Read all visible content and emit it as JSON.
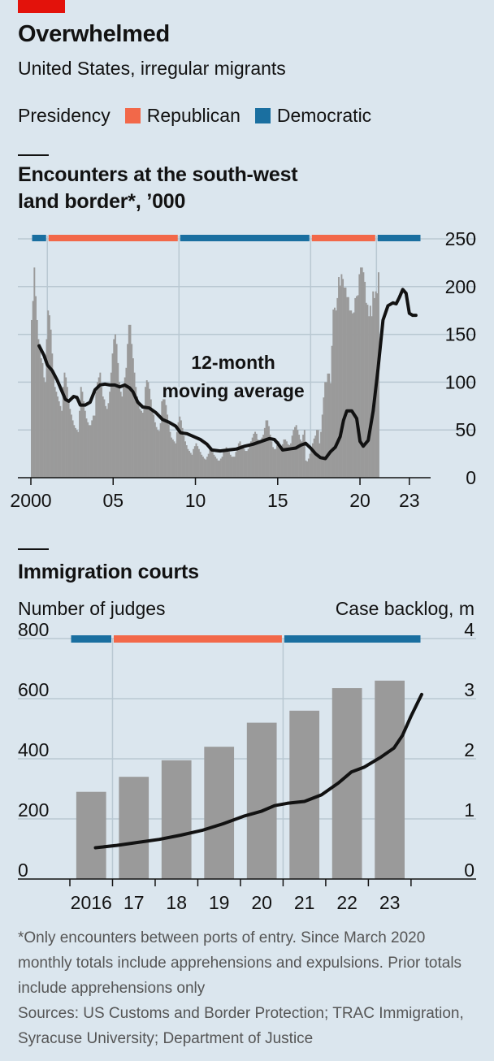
{
  "header": {
    "title": "Overwhelmed",
    "subtitle": "United States, irregular migrants"
  },
  "legend": {
    "label": "Presidency",
    "items": [
      {
        "label": "Republican",
        "color": "#f26849"
      },
      {
        "label": "Democratic",
        "color": "#1a6fa0"
      }
    ]
  },
  "colors": {
    "bar": "#9a9a9a",
    "line": "#121212",
    "background": "#dbe6ee",
    "grid": "#b9c8d2",
    "accent": "#e3120b"
  },
  "chart_data": [
    {
      "type": "bar",
      "title": "Encounters at the south-west land border*, ’000",
      "xlim": [
        2000,
        2023.75
      ],
      "ylim": [
        0,
        250
      ],
      "y_ticks": [
        0,
        50,
        100,
        150,
        200,
        250
      ],
      "x_tick_values": [
        2000,
        2005,
        2010,
        2015,
        2020,
        2023
      ],
      "x_tick_labels": [
        "2000",
        "05",
        "10",
        "15",
        "20",
        "23"
      ],
      "y_axis_side": "right",
      "grid": true,
      "presidency_bands": [
        {
          "party": "Democratic",
          "start": 2000,
          "end": 2001
        },
        {
          "party": "Republican",
          "start": 2001,
          "end": 2009
        },
        {
          "party": "Democratic",
          "start": 2009,
          "end": 2017
        },
        {
          "party": "Republican",
          "start": 2017,
          "end": 2021
        },
        {
          "party": "Democratic",
          "start": 2021,
          "end": 2023.75
        }
      ],
      "annotation": {
        "lines": [
          "12-month",
          "moving average"
        ],
        "x": 2012.3,
        "y": 114
      },
      "series": [
        {
          "name": "Monthly encounters",
          "type": "bar",
          "x_start": 2000.0,
          "x_step": 0.0833333,
          "values": [
            165,
            185,
            220,
            190,
            165,
            145,
            140,
            125,
            120,
            105,
            100,
            145,
            175,
            170,
            155,
            130,
            110,
            95,
            90,
            85,
            80,
            75,
            70,
            95,
            110,
            105,
            95,
            80,
            72,
            66,
            60,
            55,
            52,
            50,
            48,
            70,
            95,
            90,
            80,
            70,
            62,
            58,
            55,
            55,
            60,
            65,
            65,
            90,
            100,
            105,
            110,
            95,
            85,
            82,
            75,
            72,
            78,
            90,
            110,
            130,
            145,
            150,
            140,
            120,
            100,
            90,
            85,
            95,
            105,
            115,
            140,
            160,
            160,
            140,
            125,
            110,
            95,
            85,
            80,
            72,
            70,
            68,
            72,
            95,
            102,
            100,
            93,
            82,
            72,
            66,
            58,
            53,
            50,
            49,
            57,
            80,
            90,
            85,
            76,
            66,
            56,
            48,
            42,
            40,
            38,
            36,
            48,
            58,
            64,
            60,
            52,
            44,
            38,
            34,
            30,
            28,
            26,
            24,
            30,
            33,
            36,
            33,
            30,
            27,
            24,
            22,
            20,
            19,
            22,
            25,
            30,
            30,
            27,
            24,
            22,
            20,
            18,
            18,
            20,
            22,
            28,
            30,
            32,
            30,
            27,
            24,
            22,
            22,
            22,
            27,
            32,
            36,
            38,
            34,
            32,
            30,
            28,
            28,
            30,
            35,
            38,
            42,
            46,
            48,
            46,
            40,
            38,
            38,
            42,
            45,
            52,
            60,
            60,
            54,
            45,
            38,
            32,
            30,
            30,
            34,
            38,
            32,
            30,
            35,
            40,
            40,
            38,
            35,
            34,
            36,
            44,
            50,
            53,
            55,
            50,
            45,
            40,
            38,
            45,
            50,
            18,
            17,
            20,
            25,
            31,
            36,
            41,
            44,
            50,
            50,
            36,
            48,
            66,
            84,
            100,
            100,
            109,
            109,
            99,
            138,
            176,
            178,
            175,
            188,
            210,
            201,
            213,
            208,
            199,
            199,
            189,
            189,
            175,
            175,
            172,
            173,
            188,
            190,
            191,
            213,
            220,
            220,
            215,
            205,
            183,
            181,
            169,
            180,
            169,
            195,
            188,
            195,
            193,
            215
          ]
        },
        {
          "name": "12-month moving average",
          "type": "line",
          "points": [
            [
              2000.5,
              138
            ],
            [
              2000.8,
              128
            ],
            [
              2001.0,
              118
            ],
            [
              2001.3,
              112
            ],
            [
              2001.6,
              102
            ],
            [
              2001.9,
              90
            ],
            [
              2002.1,
              82
            ],
            [
              2002.3,
              80
            ],
            [
              2002.6,
              85
            ],
            [
              2002.8,
              84
            ],
            [
              2003.0,
              76
            ],
            [
              2003.3,
              76
            ],
            [
              2003.6,
              79
            ],
            [
              2003.9,
              92
            ],
            [
              2004.2,
              97
            ],
            [
              2004.5,
              98
            ],
            [
              2004.8,
              97
            ],
            [
              2005.1,
              97
            ],
            [
              2005.4,
              95
            ],
            [
              2005.7,
              97
            ],
            [
              2006.0,
              94
            ],
            [
              2006.2,
              90
            ],
            [
              2006.5,
              79
            ],
            [
              2006.8,
              74
            ],
            [
              2007.2,
              73
            ],
            [
              2007.6,
              68
            ],
            [
              2008.0,
              61
            ],
            [
              2008.4,
              58
            ],
            [
              2008.8,
              54
            ],
            [
              2009.1,
              47
            ],
            [
              2009.5,
              46
            ],
            [
              2009.9,
              43
            ],
            [
              2010.3,
              40
            ],
            [
              2010.7,
              35
            ],
            [
              2011.0,
              29
            ],
            [
              2011.5,
              28
            ],
            [
              2012.0,
              29
            ],
            [
              2012.5,
              30
            ],
            [
              2013.0,
              33
            ],
            [
              2013.5,
              35
            ],
            [
              2014.0,
              38
            ],
            [
              2014.5,
              41
            ],
            [
              2014.8,
              40
            ],
            [
              2015.0,
              36
            ],
            [
              2015.3,
              29
            ],
            [
              2015.7,
              30
            ],
            [
              2016.1,
              31
            ],
            [
              2016.4,
              34
            ],
            [
              2016.7,
              36
            ],
            [
              2017.0,
              31
            ],
            [
              2017.3,
              25
            ],
            [
              2017.6,
              21
            ],
            [
              2017.9,
              20
            ],
            [
              2018.2,
              27
            ],
            [
              2018.5,
              32
            ],
            [
              2018.8,
              43
            ],
            [
              2019.0,
              60
            ],
            [
              2019.2,
              70
            ],
            [
              2019.5,
              70
            ],
            [
              2019.8,
              62
            ],
            [
              2020.0,
              38
            ],
            [
              2020.2,
              33
            ],
            [
              2020.5,
              39
            ],
            [
              2020.8,
              70
            ],
            [
              2021.1,
              114
            ],
            [
              2021.4,
              165
            ],
            [
              2021.7,
              180
            ],
            [
              2022.0,
              183
            ],
            [
              2022.2,
              182
            ],
            [
              2022.4,
              189
            ],
            [
              2022.6,
              197
            ],
            [
              2022.8,
              193
            ],
            [
              2023.0,
              172
            ],
            [
              2023.2,
              170
            ],
            [
              2023.4,
              170
            ]
          ]
        }
      ]
    },
    {
      "type": "bar",
      "title": "Immigration courts",
      "left_axis_label": "Number of judges",
      "right_axis_label": "Case backlog, m",
      "categories": [
        "2016",
        "17",
        "18",
        "19",
        "20",
        "21",
        "22",
        "23"
      ],
      "xlim": [
        2015.5,
        2023.75
      ],
      "ylim_left": [
        0,
        800
      ],
      "ylim_right": [
        0,
        4
      ],
      "left_ticks": [
        0,
        200,
        400,
        600,
        800
      ],
      "right_ticks": [
        0,
        1,
        2,
        3,
        4
      ],
      "grid": true,
      "presidency_bands": [
        {
          "party": "Democratic",
          "start": 2015.5,
          "end": 2016.5
        },
        {
          "party": "Republican",
          "start": 2016.5,
          "end": 2020.5
        },
        {
          "party": "Democratic",
          "start": 2020.5,
          "end": 2023.75
        }
      ],
      "series": [
        {
          "name": "Number of judges",
          "type": "bar",
          "axis": "left",
          "values": [
            290,
            340,
            395,
            440,
            520,
            560,
            635,
            660
          ]
        },
        {
          "name": "Case backlog, m",
          "type": "line",
          "axis": "right",
          "points": [
            [
              2016.1,
              0.52
            ],
            [
              2016.6,
              0.56
            ],
            [
              2017.1,
              0.61
            ],
            [
              2017.6,
              0.66
            ],
            [
              2018.1,
              0.73
            ],
            [
              2018.6,
              0.81
            ],
            [
              2019.1,
              0.92
            ],
            [
              2019.6,
              1.05
            ],
            [
              2020.0,
              1.13
            ],
            [
              2020.3,
              1.22
            ],
            [
              2020.6,
              1.26
            ],
            [
              2021.0,
              1.29
            ],
            [
              2021.4,
              1.4
            ],
            [
              2021.8,
              1.6
            ],
            [
              2022.1,
              1.78
            ],
            [
              2022.4,
              1.86
            ],
            [
              2022.8,
              2.03
            ],
            [
              2023.1,
              2.18
            ],
            [
              2023.3,
              2.39
            ],
            [
              2023.5,
              2.71
            ],
            [
              2023.75,
              3.07
            ]
          ]
        }
      ]
    }
  ],
  "footnote": "*Only encounters between ports of entry. Since March 2020 monthly totals include apprehensions and expulsions. Prior totals include apprehensions only",
  "sources": "Sources: US Customs and Border Protection; TRAC Immigration, Syracuse University; Department of Justice"
}
